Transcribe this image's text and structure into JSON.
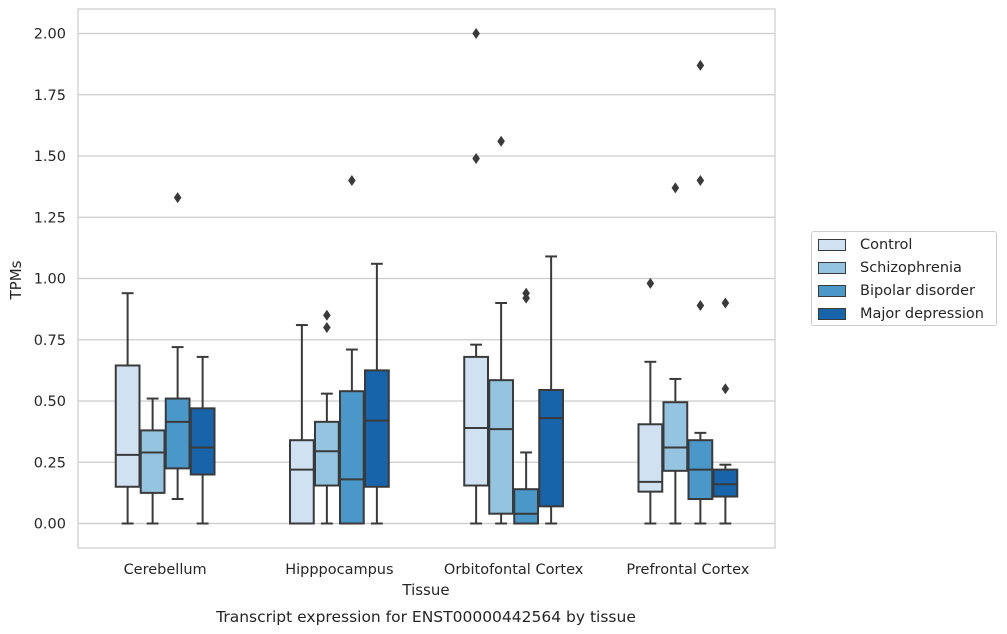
{
  "chart_data": {
    "type": "box",
    "title": "Transcript expression for ENST00000442564 by tissue",
    "xlabel": "Tissue",
    "ylabel": "TPMs",
    "ylim": [
      -0.1,
      2.1
    ],
    "yticks": [
      "0.00",
      "0.25",
      "0.50",
      "0.75",
      "1.00",
      "1.25",
      "1.50",
      "1.75",
      "2.00"
    ],
    "categories": [
      "Cerebellum",
      "Hipppocampus",
      "Orbitofontal Cortex",
      "Prefrontal Cortex"
    ],
    "grid": "horizontal",
    "legend_position": "right",
    "series": [
      {
        "name": "Control",
        "color": "#d0e1f2",
        "boxes": [
          {
            "min": 0.0,
            "q1": 0.15,
            "median": 0.28,
            "q3": 0.645,
            "max": 0.94,
            "outliers": []
          },
          {
            "min": 0.0,
            "q1": 0.0,
            "median": 0.22,
            "q3": 0.34,
            "max": 0.81,
            "outliers": []
          },
          {
            "min": 0.0,
            "q1": 0.155,
            "median": 0.39,
            "q3": 0.68,
            "max": 0.73,
            "outliers": [
              1.49,
              2.0
            ]
          },
          {
            "min": 0.0,
            "q1": 0.13,
            "median": 0.17,
            "q3": 0.405,
            "max": 0.66,
            "outliers": [
              0.98
            ]
          }
        ]
      },
      {
        "name": "Schizophrenia",
        "color": "#94c4df",
        "boxes": [
          {
            "min": 0.0,
            "q1": 0.125,
            "median": 0.29,
            "q3": 0.38,
            "max": 0.51,
            "outliers": []
          },
          {
            "min": 0.0,
            "q1": 0.155,
            "median": 0.295,
            "q3": 0.415,
            "max": 0.53,
            "outliers": [
              0.8,
              0.85
            ]
          },
          {
            "min": 0.0,
            "q1": 0.04,
            "median": 0.385,
            "q3": 0.585,
            "max": 0.9,
            "outliers": [
              1.56
            ]
          },
          {
            "min": 0.0,
            "q1": 0.215,
            "median": 0.31,
            "q3": 0.495,
            "max": 0.59,
            "outliers": [
              1.37
            ]
          }
        ]
      },
      {
        "name": "Bipolar disorder",
        "color": "#4a98c9",
        "boxes": [
          {
            "min": 0.1,
            "q1": 0.225,
            "median": 0.415,
            "q3": 0.51,
            "max": 0.72,
            "outliers": [
              1.33
            ]
          },
          {
            "min": 0.0,
            "q1": 0.0,
            "median": 0.18,
            "q3": 0.54,
            "max": 0.71,
            "outliers": [
              1.4
            ]
          },
          {
            "min": 0.0,
            "q1": 0.0,
            "median": 0.04,
            "q3": 0.14,
            "max": 0.29,
            "outliers": [
              0.92,
              0.94
            ]
          },
          {
            "min": 0.0,
            "q1": 0.1,
            "median": 0.22,
            "q3": 0.34,
            "max": 0.37,
            "outliers": [
              0.89,
              1.4,
              1.87
            ]
          }
        ]
      },
      {
        "name": "Major depression",
        "color": "#1764ab",
        "boxes": [
          {
            "min": 0.0,
            "q1": 0.2,
            "median": 0.31,
            "q3": 0.47,
            "max": 0.68,
            "outliers": []
          },
          {
            "min": 0.0,
            "q1": 0.15,
            "median": 0.42,
            "q3": 0.625,
            "max": 1.06,
            "outliers": []
          },
          {
            "min": 0.0,
            "q1": 0.07,
            "median": 0.43,
            "q3": 0.545,
            "max": 1.09,
            "outliers": []
          },
          {
            "min": 0.0,
            "q1": 0.11,
            "median": 0.16,
            "q3": 0.22,
            "max": 0.24,
            "outliers": [
              0.55,
              0.9
            ]
          }
        ]
      }
    ]
  }
}
